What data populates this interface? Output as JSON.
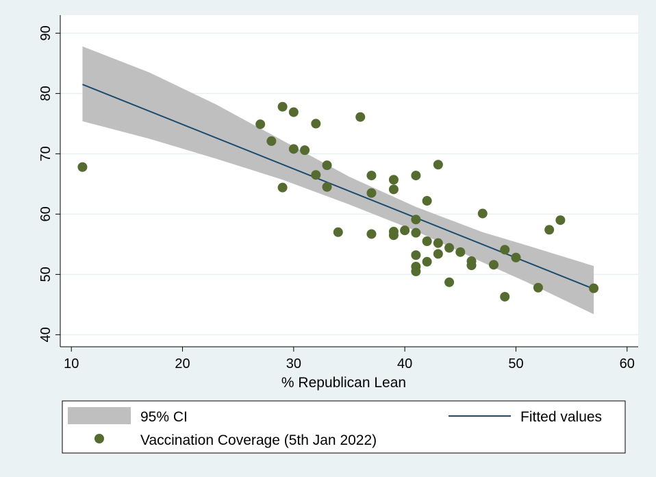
{
  "chart_data": {
    "type": "scatter",
    "xlabel": "% Republican Lean",
    "ylabel": "",
    "xlim": [
      9,
      61
    ],
    "ylim": [
      38,
      93
    ],
    "xticks": [
      10,
      20,
      30,
      40,
      50,
      60
    ],
    "yticks": [
      40,
      50,
      60,
      70,
      80,
      90
    ],
    "grid": true,
    "legend_position": "bottom",
    "colors": {
      "points": "#556b2f",
      "fit_line": "#1a4a6e",
      "ci_band": "#bfbfbf",
      "plot_bg": "#ffffff",
      "page_bg": "#eaf2f3"
    },
    "series": [
      {
        "name": "Vaccination Coverage (5th Jan 2022)",
        "points": [
          [
            11,
            67.8
          ],
          [
            27,
            74.9
          ],
          [
            28,
            72.1
          ],
          [
            29,
            77.8
          ],
          [
            29,
            64.4
          ],
          [
            30,
            76.9
          ],
          [
            30,
            70.8
          ],
          [
            31,
            70.6
          ],
          [
            32,
            75.0
          ],
          [
            32,
            66.5
          ],
          [
            33,
            68.1
          ],
          [
            33,
            64.5
          ],
          [
            34,
            57.0
          ],
          [
            36,
            76.1
          ],
          [
            37,
            66.4
          ],
          [
            37,
            63.5
          ],
          [
            37,
            56.7
          ],
          [
            39,
            65.7
          ],
          [
            39,
            64.1
          ],
          [
            39,
            57.1
          ],
          [
            39,
            56.5
          ],
          [
            40,
            57.3
          ],
          [
            41,
            66.4
          ],
          [
            41,
            59.1
          ],
          [
            41,
            56.9
          ],
          [
            41,
            53.2
          ],
          [
            41,
            51.3
          ],
          [
            41,
            50.5
          ],
          [
            42,
            62.2
          ],
          [
            42,
            55.5
          ],
          [
            42,
            52.1
          ],
          [
            43,
            68.2
          ],
          [
            43,
            55.2
          ],
          [
            43,
            53.4
          ],
          [
            44,
            54.4
          ],
          [
            44,
            48.7
          ],
          [
            45,
            53.7
          ],
          [
            46,
            52.2
          ],
          [
            46,
            51.5
          ],
          [
            47,
            60.1
          ],
          [
            48,
            51.6
          ],
          [
            49,
            54.1
          ],
          [
            49,
            46.3
          ],
          [
            50,
            52.8
          ],
          [
            52,
            47.8
          ],
          [
            53,
            57.4
          ],
          [
            54,
            59.0
          ],
          [
            57,
            47.7
          ]
        ]
      },
      {
        "name": "Fitted values",
        "x": [
          11,
          57
        ],
        "y": [
          81.5,
          47.6
        ]
      },
      {
        "name": "95% CI",
        "x": [
          11,
          17,
          23,
          29,
          35,
          41,
          47,
          51,
          57
        ],
        "upper": [
          87.8,
          83.5,
          78.2,
          72.2,
          66.2,
          61.2,
          57.0,
          54.8,
          51.4
        ],
        "lower": [
          75.4,
          72.5,
          69.2,
          65.7,
          61.6,
          57.2,
          52.0,
          48.7,
          43.4
        ]
      }
    ],
    "legend": {
      "ci_label": "95% CI",
      "fit_label": "Fitted values",
      "points_label": "Vaccination Coverage (5th Jan 2022)"
    }
  }
}
